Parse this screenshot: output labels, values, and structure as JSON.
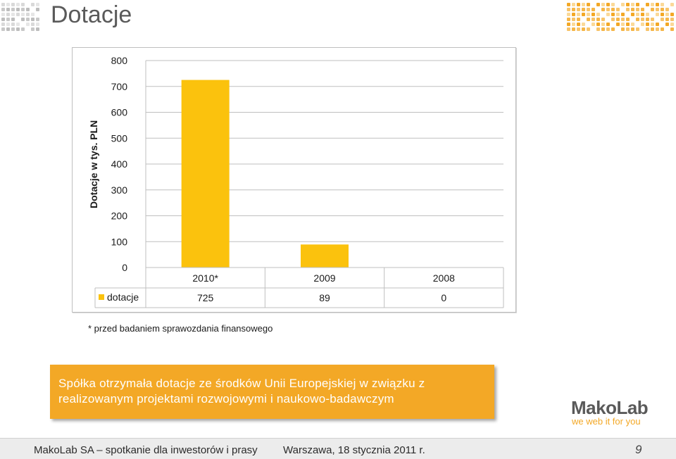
{
  "slide": {
    "title": "Dotacje",
    "footnote": "* przed badaniem sprawozdania finansowego",
    "callout": {
      "line1": "Spółka otrzymała dotacje ze środków Unii Europejskiej w związku z",
      "line2": "realizowanym projektami rozwojowymi i naukowo-badawczym"
    },
    "logo": {
      "name": "MakoLab",
      "tagline": "we web it for you"
    },
    "footer": {
      "left": "MakoLab SA – spotkanie dla inwestorów i prasy",
      "center": "Warszawa, 18 stycznia 2011 r.",
      "page": "9"
    }
  },
  "colors": {
    "accent": "#f3a826",
    "bar": "#fbc20d"
  },
  "chart_data": {
    "type": "bar",
    "categories": [
      "2010*",
      "2009",
      "2008"
    ],
    "series": [
      {
        "name": "dotacje",
        "values": [
          725,
          89,
          0
        ]
      }
    ],
    "ylabel": "Dotacje w tys. PLN",
    "ylim": [
      0,
      800
    ],
    "yticks": [
      0,
      100,
      200,
      300,
      400,
      500,
      600,
      700,
      800
    ],
    "grid": true,
    "data_table": true
  }
}
